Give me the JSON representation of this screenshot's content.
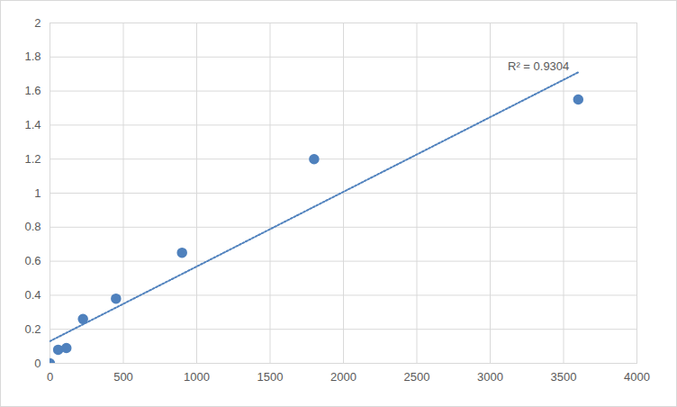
{
  "chart_data": {
    "type": "scatter",
    "x": [
      0,
      56,
      112,
      225,
      450,
      900,
      1800,
      3600
    ],
    "values": [
      0,
      0.08,
      0.09,
      0.26,
      0.38,
      0.65,
      1.2,
      1.55
    ],
    "color": "#4f81bd",
    "marker": "circle",
    "xlim": [
      0,
      4000
    ],
    "xticks": [
      0,
      500,
      1000,
      1500,
      2000,
      2500,
      3000,
      3500,
      4000
    ],
    "ylim": [
      0,
      2
    ],
    "yticks": [
      0,
      0.2,
      0.4,
      0.6,
      0.8,
      1,
      1.2,
      1.4,
      1.6,
      1.8,
      2
    ],
    "grid": true,
    "trendline": {
      "x": [
        0,
        3600
      ],
      "values": [
        0.13,
        1.71
      ],
      "line_style": "dotted",
      "color": "#4f81bd"
    },
    "annotations": [
      "R² = 0.9304"
    ]
  }
}
